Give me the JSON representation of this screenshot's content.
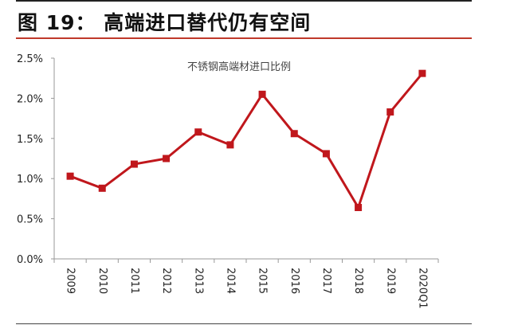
{
  "header": {
    "title": "图 19： 高端进口替代仍有空间"
  },
  "chart_data": {
    "type": "line",
    "title": "不锈钢高端材进口比例",
    "xlabel": "",
    "ylabel": "",
    "categories": [
      "2009",
      "2010",
      "2011",
      "2012",
      "2013",
      "2014",
      "2015",
      "2016",
      "2017",
      "2018",
      "2019",
      "2020Q1"
    ],
    "values": [
      1.03,
      0.88,
      1.18,
      1.25,
      1.58,
      1.42,
      2.05,
      1.56,
      1.31,
      0.64,
      1.83,
      2.31
    ],
    "unit": "%",
    "yticks": [
      "0.0%",
      "0.5%",
      "1.0%",
      "1.5%",
      "2.0%",
      "2.5%"
    ],
    "ylim": [
      0,
      2.5
    ],
    "grid": false,
    "line_color": "#c0171c",
    "marker": "square"
  }
}
